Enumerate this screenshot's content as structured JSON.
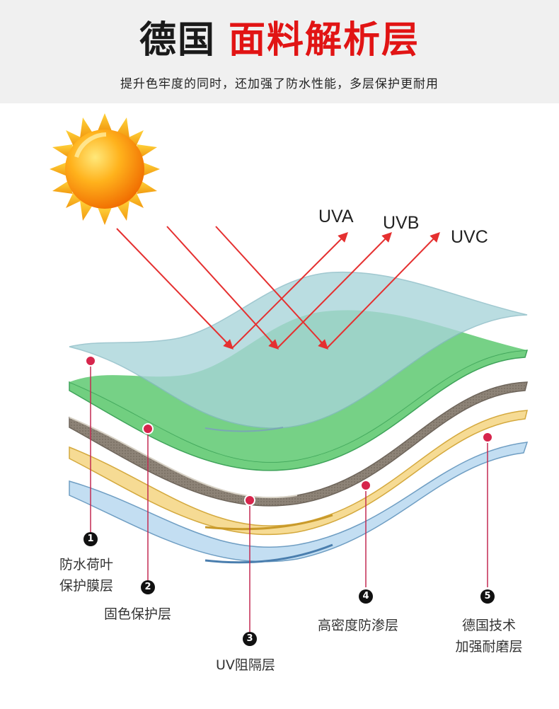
{
  "header": {
    "title_black": "德国",
    "title_red": "面料解析层",
    "subtitle": "提升色牢度的同时，还加强了防水性能，多层保护更耐用"
  },
  "rays": [
    "UVA",
    "UVB",
    "UVC"
  ],
  "layers": [
    {
      "number": "1",
      "line1": "防水荷叶",
      "line2": "保护膜层"
    },
    {
      "number": "2",
      "line1": "固色保护层"
    },
    {
      "number": "3",
      "line1": "UV阻隔层"
    },
    {
      "number": "4",
      "line1": "高密度防渗层"
    },
    {
      "number": "5",
      "line1": "德国技术",
      "line2": "加强耐磨层"
    }
  ],
  "colors": {
    "title_red": "#e11414",
    "arrow_red": "#e53030",
    "pin_dot": "#d6254c",
    "layer_top": "#a9cfd6",
    "layer_green": "#6fce7e",
    "layer_brown": "#8c8276",
    "layer_yellow": "#f5d98e",
    "layer_blue": "#bfdcf0"
  }
}
